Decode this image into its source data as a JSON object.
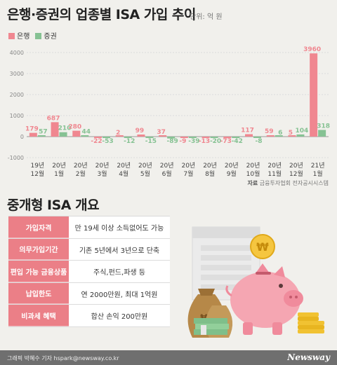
{
  "title": "은행·증권의 업종별 ISA 가입 추이",
  "unit": "단위: 억 원",
  "source_label": "자료",
  "source_text": "금융투자협회 전자공시시스템",
  "subtitle": "중개형 ISA 개요",
  "footer_credit": "그래픽 박혜수 기자 hspark@newsway.co.kr",
  "brand": "Newsway",
  "colors": {
    "bank": "#f08790",
    "securities": "#86c293",
    "header_cell": "#eb7f87"
  },
  "chart_data": {
    "type": "bar",
    "categories": [
      [
        "19년",
        "12월"
      ],
      [
        "20년",
        "1월"
      ],
      [
        "20년",
        "2월"
      ],
      [
        "20년",
        "3월"
      ],
      [
        "20년",
        "4월"
      ],
      [
        "20년",
        "5월"
      ],
      [
        "20년",
        "6월"
      ],
      [
        "20년",
        "7월"
      ],
      [
        "20년",
        "8월"
      ],
      [
        "20년",
        "9월"
      ],
      [
        "20년",
        "10월"
      ],
      [
        "20년",
        "11월"
      ],
      [
        "20년",
        "12월"
      ],
      [
        "21년",
        "1월"
      ]
    ],
    "series": [
      {
        "name": "은행",
        "color": "#f08790",
        "values": [
          179,
          687,
          280,
          -22,
          2,
          99,
          37,
          -9,
          -13,
          -73,
          117,
          59,
          5,
          3960
        ]
      },
      {
        "name": "증권",
        "color": "#86c293",
        "values": [
          57,
          210,
          44,
          -53,
          -12,
          -15,
          -89,
          -39,
          -20,
          -42,
          -8,
          6,
          104,
          318
        ]
      }
    ],
    "yticks": [
      4000,
      3000,
      2000,
      1000,
      0,
      -1000
    ],
    "ylim": [
      -1000,
      4000
    ],
    "grid": true,
    "legend_position": "top-left"
  },
  "overview": [
    {
      "label": "가입자격",
      "value": "만 19세 이상 소득없어도 가능"
    },
    {
      "label": "의무가입기간",
      "value": "기존 5년에서 3년으로 단축"
    },
    {
      "label": "편입 가능 금융상품",
      "value": "주식,펀드,파생 등"
    },
    {
      "label": "납입한도",
      "value": "연 2000만원, 최대 1억원"
    },
    {
      "label": "비과세 혜택",
      "value": "합산 손익 200만원"
    }
  ],
  "illustration": {
    "currency_symbol": "₩"
  }
}
